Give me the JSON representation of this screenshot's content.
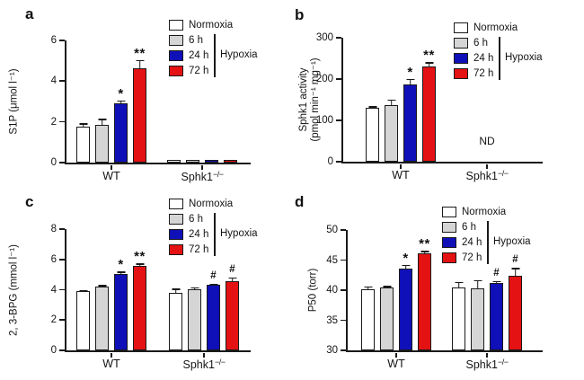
{
  "colors": {
    "background": "#ffffff",
    "axis": "#1a1a1a",
    "series": {
      "Normoxia": "#ffffff",
      "6 h": "#d5d5d5",
      "24 h": "#1010b8",
      "72 h": "#e41212"
    }
  },
  "legend": {
    "items": [
      {
        "label": "Normoxia"
      },
      {
        "label": "6 h"
      },
      {
        "label": "24 h"
      },
      {
        "label": "72 h"
      }
    ],
    "bracket_label": "Hypoxia",
    "bracket_series": [
      "6 h",
      "24 h",
      "72 h"
    ]
  },
  "chart_data": [
    {
      "type": "bar",
      "panel_letter": "a",
      "ylabel_lines": [
        "S1P (μmol l⁻¹)"
      ],
      "ylim": [
        0,
        6
      ],
      "yticks": [
        0,
        2,
        4,
        6
      ],
      "series": [
        "Normoxia",
        "6 h",
        "24 h",
        "72 h"
      ],
      "groups": [
        {
          "label": "WT",
          "values": [
            1.78,
            1.85,
            2.9,
            4.65
          ],
          "errors": [
            0.15,
            0.3,
            0.15,
            0.4
          ],
          "sig": [
            "",
            "",
            "*",
            "**"
          ]
        },
        {
          "label": "Sphk1",
          "label_sup": "−/−",
          "values": [
            0.05,
            0.05,
            0.08,
            0.12
          ],
          "errors": [
            0,
            0,
            0,
            0
          ],
          "sig": [
            "",
            "",
            "",
            ""
          ]
        }
      ]
    },
    {
      "type": "bar",
      "panel_letter": "b",
      "ylabel_lines": [
        "Sphk1 activity",
        "(pmol min⁻¹ mg⁻¹)"
      ],
      "ylim": [
        0,
        300
      ],
      "yticks": [
        0,
        100,
        200,
        300
      ],
      "series": [
        "Normoxia",
        "6 h",
        "24 h",
        "72 h"
      ],
      "groups": [
        {
          "label": "WT",
          "values": [
            130,
            137,
            188,
            230
          ],
          "errors": [
            5,
            14,
            13,
            11
          ],
          "sig": [
            "",
            "",
            "*",
            "**"
          ]
        },
        {
          "label": "Sphk1",
          "label_sup": "−/−",
          "values": [],
          "errors": [],
          "sig": [],
          "annotation": "ND"
        }
      ]
    },
    {
      "type": "bar",
      "panel_letter": "c",
      "ylabel_lines": [
        "2, 3-BPG (mmol l⁻¹)"
      ],
      "ylim": [
        0,
        8
      ],
      "yticks": [
        0,
        2,
        4,
        6,
        8
      ],
      "series": [
        "Normoxia",
        "6 h",
        "24 h",
        "72 h"
      ],
      "groups": [
        {
          "label": "WT",
          "values": [
            3.9,
            4.2,
            5.05,
            5.6
          ],
          "errors": [
            0.1,
            0.1,
            0.15,
            0.12
          ],
          "sig": [
            "",
            "",
            "*",
            "**"
          ]
        },
        {
          "label": "Sphk1",
          "label_sup": "−/−",
          "values": [
            3.8,
            4.05,
            4.3,
            4.55
          ],
          "errors": [
            0.28,
            0.12,
            0.1,
            0.28
          ],
          "sig": [
            "",
            "",
            "#",
            "#"
          ]
        }
      ]
    },
    {
      "type": "bar",
      "panel_letter": "d",
      "ylabel_lines": [
        "P50 (torr)"
      ],
      "ylim": [
        30,
        50
      ],
      "yticks": [
        30,
        35,
        40,
        45,
        50
      ],
      "series": [
        "Normoxia",
        "6 h",
        "24 h",
        "72 h"
      ],
      "groups": [
        {
          "label": "WT",
          "values": [
            40.1,
            40.5,
            43.6,
            46.1
          ],
          "errors": [
            0.55,
            0.25,
            0.65,
            0.4
          ],
          "sig": [
            "",
            "",
            "*",
            "**"
          ]
        },
        {
          "label": "Sphk1",
          "label_sup": "−/−",
          "values": [
            40.4,
            40.3,
            41.2,
            42.4
          ],
          "errors": [
            1.0,
            1.4,
            0.35,
            1.3
          ],
          "sig": [
            "",
            "",
            "#",
            "#"
          ]
        }
      ]
    }
  ]
}
